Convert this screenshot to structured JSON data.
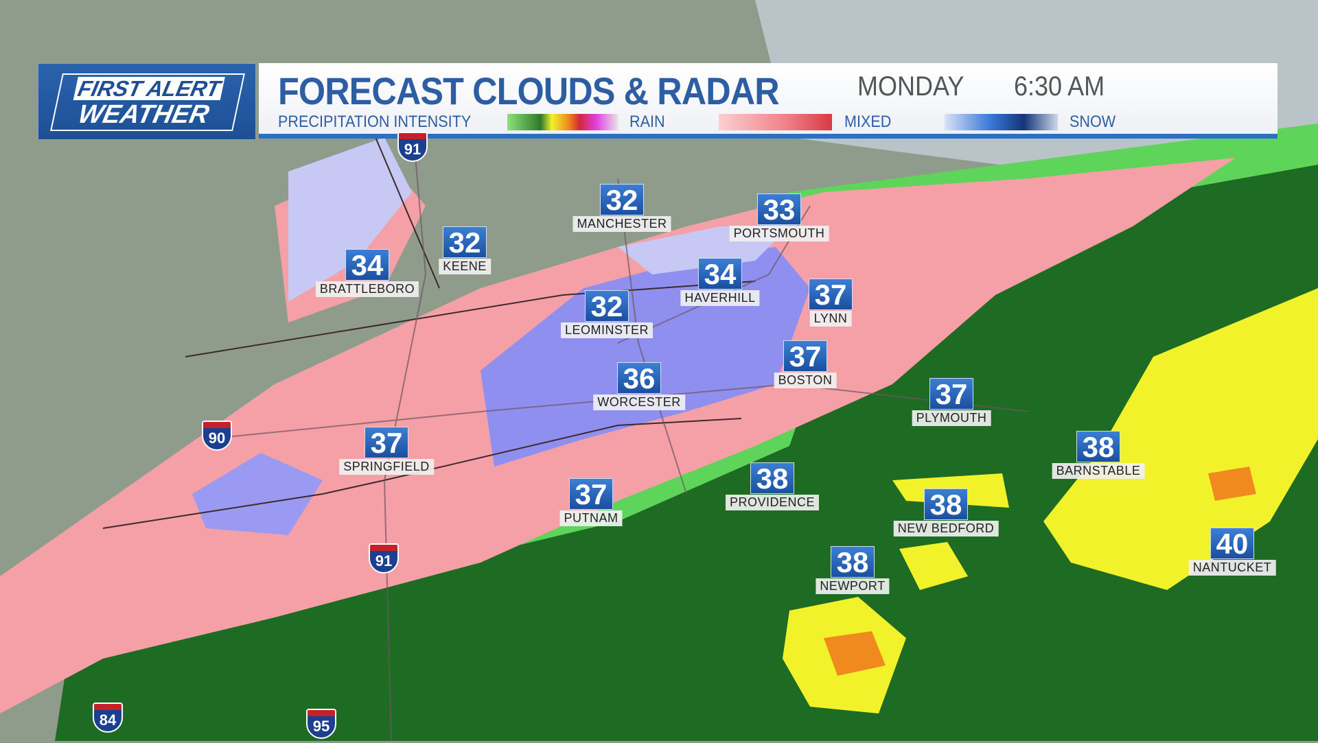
{
  "header": {
    "logo_line1": "FIRST ALERT",
    "logo_line2": "WEATHER",
    "title": "FORECAST CLOUDS & RADAR",
    "day": "MONDAY",
    "time": "6:30 AM",
    "legend_title": "PRECIPITATION INTENSITY",
    "legend": [
      {
        "label": "RAIN"
      },
      {
        "label": "MIXED"
      },
      {
        "label": "SNOW"
      }
    ]
  },
  "colors": {
    "brand_blue": "#2d5ea4",
    "rain_light": "#5fd45a",
    "rain_dark": "#1e6b24",
    "rain_heavy": "#f2f22a",
    "rain_intense": "#f08a1e",
    "mixed": "#f4a0a6",
    "snow": "#8f8ff0",
    "land": "#8f9c8c"
  },
  "cities": [
    {
      "name": "MANCHESTER",
      "temp": "32"
    },
    {
      "name": "PORTSMOUTH",
      "temp": "33"
    },
    {
      "name": "KEENE",
      "temp": "32"
    },
    {
      "name": "BRATTLEBORO",
      "temp": "34"
    },
    {
      "name": "HAVERHILL",
      "temp": "34"
    },
    {
      "name": "LYNN",
      "temp": "37"
    },
    {
      "name": "LEOMINSTER",
      "temp": "32"
    },
    {
      "name": "BOSTON",
      "temp": "37"
    },
    {
      "name": "WORCESTER",
      "temp": "36"
    },
    {
      "name": "PLYMOUTH",
      "temp": "37"
    },
    {
      "name": "SPRINGFIELD",
      "temp": "37"
    },
    {
      "name": "BARNSTABLE",
      "temp": "38"
    },
    {
      "name": "PROVIDENCE",
      "temp": "38"
    },
    {
      "name": "NEW BEDFORD",
      "temp": "38"
    },
    {
      "name": "PUTNAM",
      "temp": "37"
    },
    {
      "name": "NEWPORT",
      "temp": "38"
    },
    {
      "name": "NANTUCKET",
      "temp": "40"
    }
  ],
  "interstates": [
    "91",
    "90",
    "91",
    "84",
    "95"
  ]
}
